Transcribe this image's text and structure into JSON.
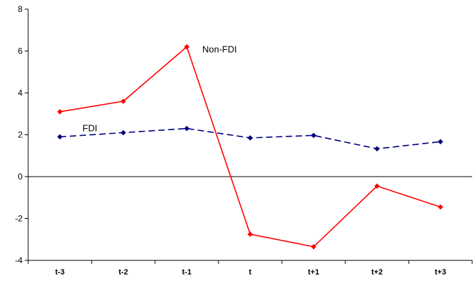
{
  "chart_data": {
    "type": "line",
    "categories": [
      "t-3",
      "t-2",
      "t-1",
      "t",
      "t+1",
      "t+2",
      "t+3"
    ],
    "series": [
      {
        "name": "Non-FDI",
        "values": [
          3.1,
          3.6,
          6.2,
          -2.75,
          -3.35,
          -0.45,
          -1.45
        ],
        "color": "#ff0000",
        "dash": "solid"
      },
      {
        "name": "FDI",
        "values": [
          1.9,
          2.1,
          2.3,
          1.85,
          1.97,
          1.33,
          1.67
        ],
        "color": "#000080",
        "dash": "dashed"
      }
    ],
    "yticks": [
      "8",
      "6",
      "4",
      "2",
      "0",
      "-2",
      "-4"
    ],
    "ylim": [
      -4,
      8
    ],
    "grid": false,
    "legend": "inline labels"
  }
}
